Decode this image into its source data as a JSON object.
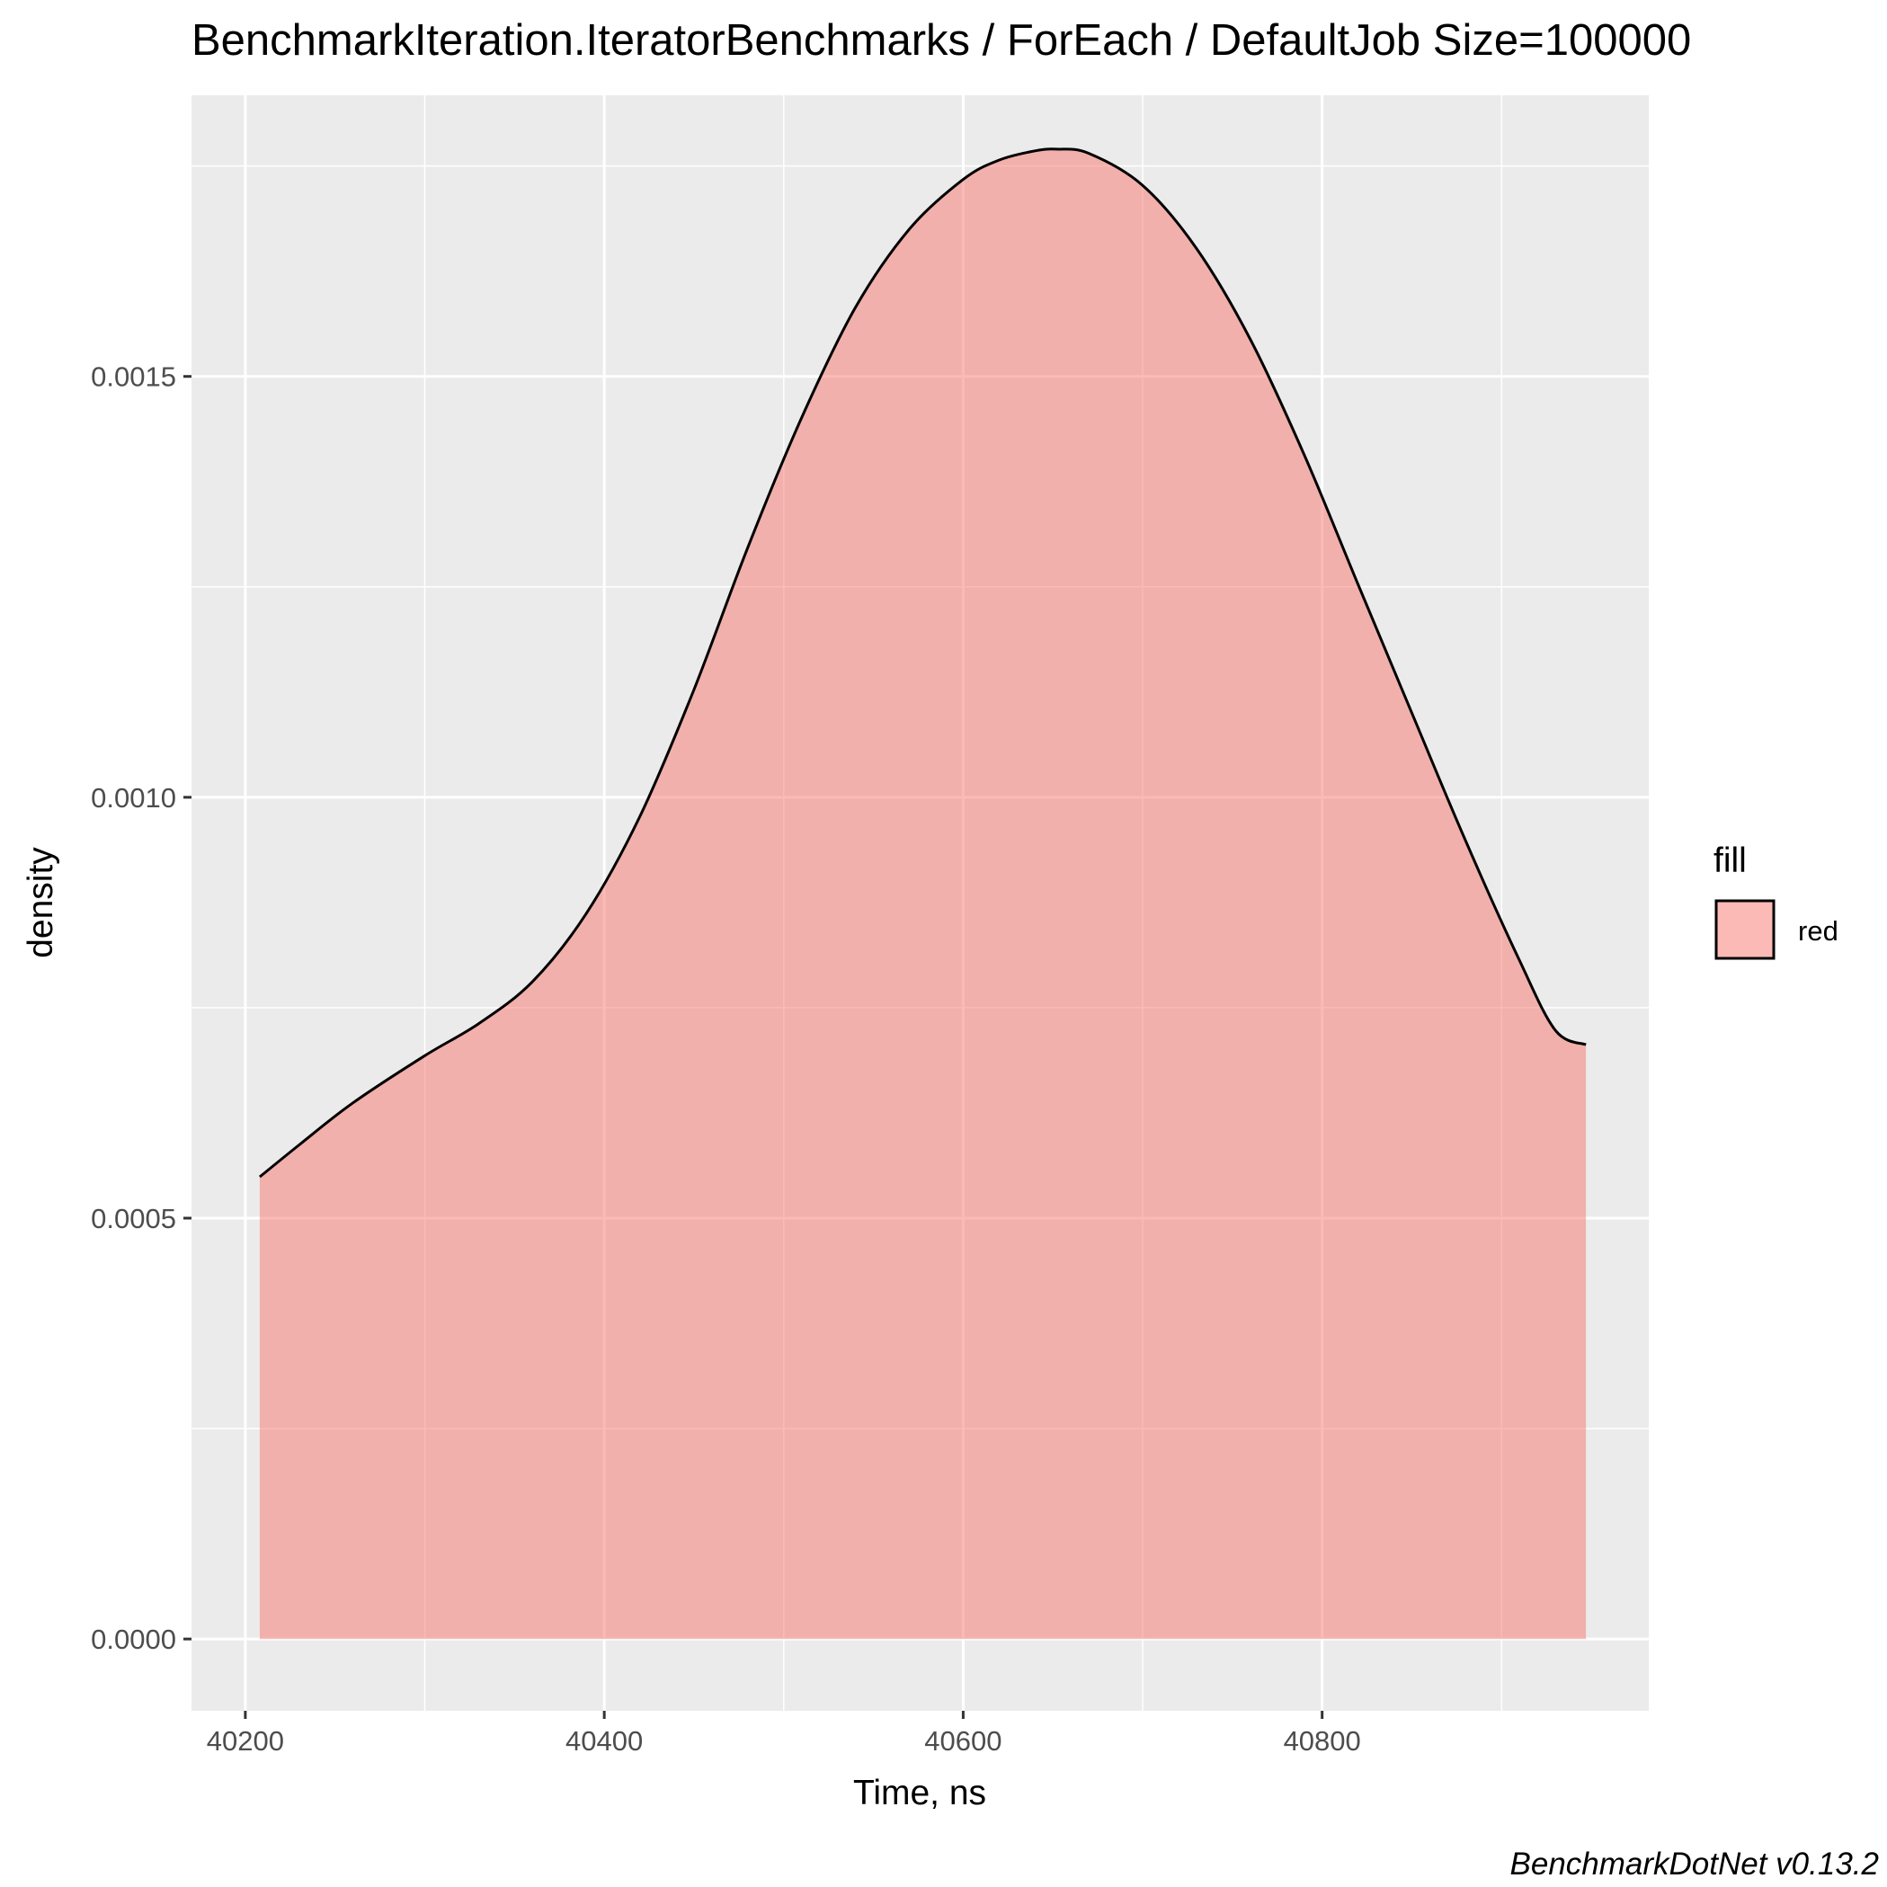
{
  "chart_data": {
    "type": "area",
    "title": "BenchmarkIteration.IteratorBenchmarks / ForEach / DefaultJob Size=100000",
    "xlabel": "Time, ns",
    "ylabel": "density",
    "caption": "BenchmarkDotNet v0.13.2",
    "xlim": [
      40170,
      40982
    ],
    "ylim": [
      -8.53e-05,
      0.001834
    ],
    "x_ticks": [
      40200,
      40400,
      40600,
      40800
    ],
    "x_minor": [
      40300,
      40500,
      40700,
      40900
    ],
    "y_ticks": [
      0.0,
      0.0005,
      0.001,
      0.0015
    ],
    "y_minor": [
      0.00025,
      0.00075,
      0.00125,
      0.00175
    ],
    "x_tick_labels": [
      "40200",
      "40400",
      "40600",
      "40800"
    ],
    "y_tick_labels": [
      "0.0000",
      "0.0005",
      "0.0010",
      "0.0015"
    ],
    "legend": {
      "title": "fill",
      "label": "red",
      "position": "right"
    },
    "fill_color": "#F8766D",
    "fill_alpha": 0.5,
    "line_color": "#000000",
    "panel_color": "#EBEBEB",
    "grid_color": "#FFFFFF",
    "series": [
      {
        "x": [
          40208,
          40230,
          40260,
          40300,
          40330,
          40360,
          40390,
          40420,
          40450,
          40480,
          40510,
          40540,
          40570,
          40600,
          40620,
          40640,
          40652,
          40670,
          40700,
          40730,
          40760,
          40790,
          40820,
          40850,
          40880,
          40910,
          40930,
          40947
        ],
        "y": [
          0.000549,
          0.000587,
          0.000637,
          0.000693,
          0.000731,
          0.000781,
          0.000862,
          0.000978,
          0.001128,
          0.001297,
          0.001451,
          0.001582,
          0.001675,
          0.001734,
          0.001757,
          0.001768,
          0.00177,
          0.001765,
          0.001727,
          0.001652,
          0.001544,
          0.001407,
          0.001253,
          0.0011,
          0.000948,
          0.000806,
          0.000723,
          0.000706
        ]
      }
    ]
  }
}
